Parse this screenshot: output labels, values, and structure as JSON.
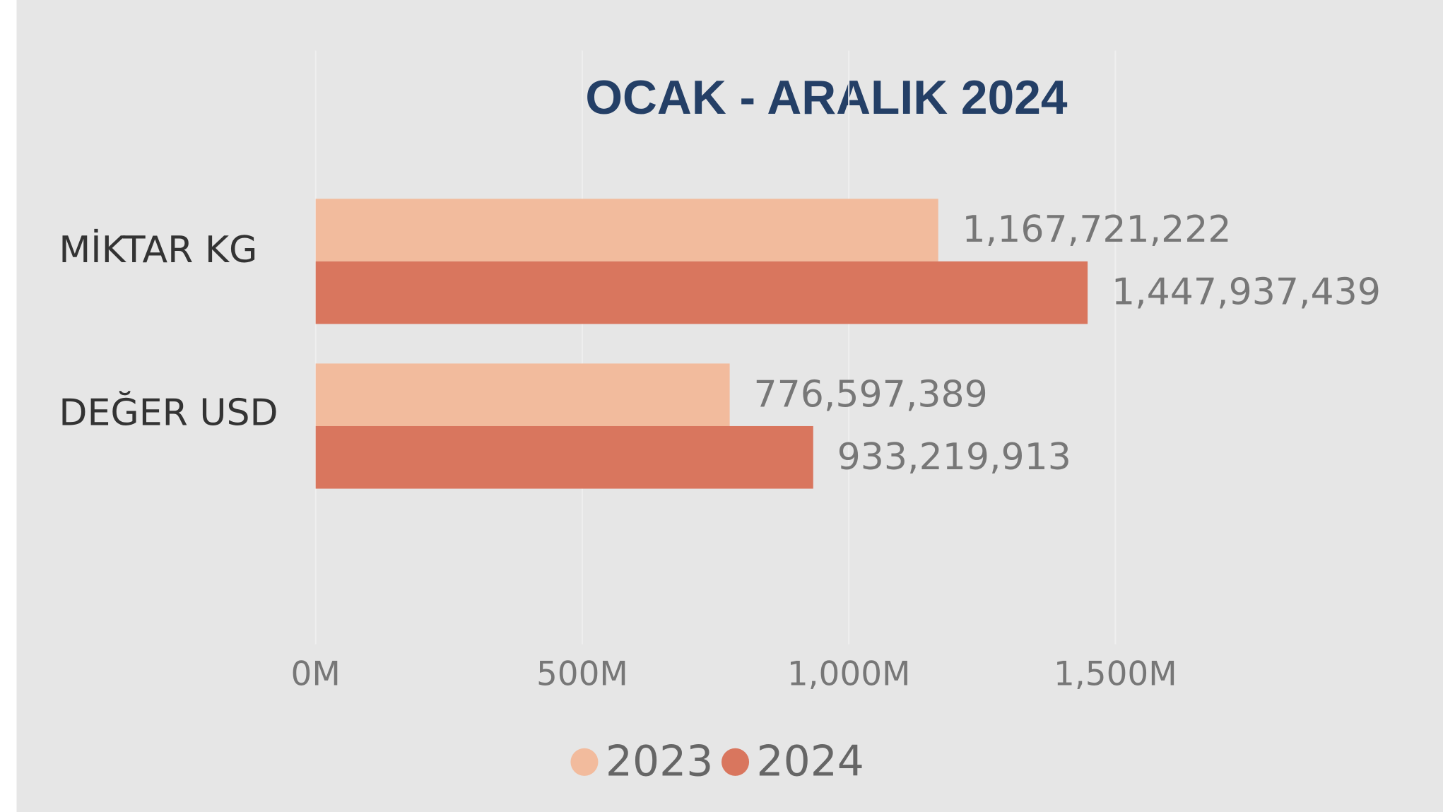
{
  "chart_data": {
    "type": "bar",
    "orientation": "horizontal",
    "title": "OCAK - ARALIK 2024",
    "categories": [
      "MİKTAR KG",
      "DEĞER USD"
    ],
    "series": [
      {
        "name": "2023",
        "color": "#f2bb9d",
        "values": [
          1167721222,
          776597389
        ],
        "value_labels": [
          "1,167,721,222",
          "776,597,389"
        ]
      },
      {
        "name": "2024",
        "color": "#d9765e",
        "values": [
          1447937439,
          933219913
        ],
        "value_labels": [
          "1,447,937,439",
          "933,219,913"
        ]
      }
    ],
    "xlim": [
      0,
      1500000000
    ],
    "xticks": [
      {
        "value": 0,
        "label": "0M"
      },
      {
        "value": 500000000,
        "label": "500M"
      },
      {
        "value": 1000000000,
        "label": "1,000M"
      },
      {
        "value": 1500000000,
        "label": "1,500M"
      }
    ],
    "grid": true,
    "legend": "bottom"
  }
}
